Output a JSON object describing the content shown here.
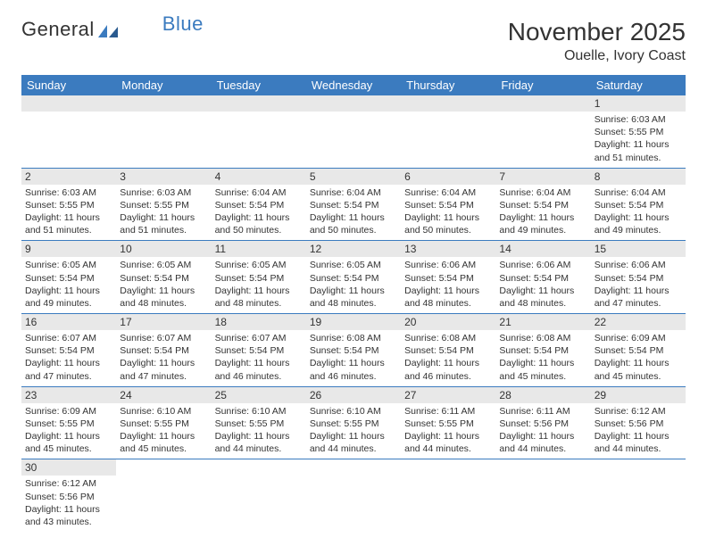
{
  "logo": {
    "text1": "General",
    "text2": "Blue"
  },
  "title": "November 2025",
  "location": "Ouelle, Ivory Coast",
  "colors": {
    "header_bg": "#3b7bbf",
    "header_text": "#ffffff",
    "daynum_bg": "#e8e8e8",
    "border": "#3b7bbf",
    "text": "#333333",
    "background": "#ffffff"
  },
  "typography": {
    "title_fontsize": 28,
    "location_fontsize": 16,
    "day_header_fontsize": 13,
    "daynum_fontsize": 12,
    "body_fontsize": 10.5
  },
  "days_of_week": [
    "Sunday",
    "Monday",
    "Tuesday",
    "Wednesday",
    "Thursday",
    "Friday",
    "Saturday"
  ],
  "weeks": [
    [
      null,
      null,
      null,
      null,
      null,
      null,
      {
        "n": "1",
        "sunrise": "6:03 AM",
        "sunset": "5:55 PM",
        "daylight": "11 hours and 51 minutes."
      }
    ],
    [
      {
        "n": "2",
        "sunrise": "6:03 AM",
        "sunset": "5:55 PM",
        "daylight": "11 hours and 51 minutes."
      },
      {
        "n": "3",
        "sunrise": "6:03 AM",
        "sunset": "5:55 PM",
        "daylight": "11 hours and 51 minutes."
      },
      {
        "n": "4",
        "sunrise": "6:04 AM",
        "sunset": "5:54 PM",
        "daylight": "11 hours and 50 minutes."
      },
      {
        "n": "5",
        "sunrise": "6:04 AM",
        "sunset": "5:54 PM",
        "daylight": "11 hours and 50 minutes."
      },
      {
        "n": "6",
        "sunrise": "6:04 AM",
        "sunset": "5:54 PM",
        "daylight": "11 hours and 50 minutes."
      },
      {
        "n": "7",
        "sunrise": "6:04 AM",
        "sunset": "5:54 PM",
        "daylight": "11 hours and 49 minutes."
      },
      {
        "n": "8",
        "sunrise": "6:04 AM",
        "sunset": "5:54 PM",
        "daylight": "11 hours and 49 minutes."
      }
    ],
    [
      {
        "n": "9",
        "sunrise": "6:05 AM",
        "sunset": "5:54 PM",
        "daylight": "11 hours and 49 minutes."
      },
      {
        "n": "10",
        "sunrise": "6:05 AM",
        "sunset": "5:54 PM",
        "daylight": "11 hours and 48 minutes."
      },
      {
        "n": "11",
        "sunrise": "6:05 AM",
        "sunset": "5:54 PM",
        "daylight": "11 hours and 48 minutes."
      },
      {
        "n": "12",
        "sunrise": "6:05 AM",
        "sunset": "5:54 PM",
        "daylight": "11 hours and 48 minutes."
      },
      {
        "n": "13",
        "sunrise": "6:06 AM",
        "sunset": "5:54 PM",
        "daylight": "11 hours and 48 minutes."
      },
      {
        "n": "14",
        "sunrise": "6:06 AM",
        "sunset": "5:54 PM",
        "daylight": "11 hours and 48 minutes."
      },
      {
        "n": "15",
        "sunrise": "6:06 AM",
        "sunset": "5:54 PM",
        "daylight": "11 hours and 47 minutes."
      }
    ],
    [
      {
        "n": "16",
        "sunrise": "6:07 AM",
        "sunset": "5:54 PM",
        "daylight": "11 hours and 47 minutes."
      },
      {
        "n": "17",
        "sunrise": "6:07 AM",
        "sunset": "5:54 PM",
        "daylight": "11 hours and 47 minutes."
      },
      {
        "n": "18",
        "sunrise": "6:07 AM",
        "sunset": "5:54 PM",
        "daylight": "11 hours and 46 minutes."
      },
      {
        "n": "19",
        "sunrise": "6:08 AM",
        "sunset": "5:54 PM",
        "daylight": "11 hours and 46 minutes."
      },
      {
        "n": "20",
        "sunrise": "6:08 AM",
        "sunset": "5:54 PM",
        "daylight": "11 hours and 46 minutes."
      },
      {
        "n": "21",
        "sunrise": "6:08 AM",
        "sunset": "5:54 PM",
        "daylight": "11 hours and 45 minutes."
      },
      {
        "n": "22",
        "sunrise": "6:09 AM",
        "sunset": "5:54 PM",
        "daylight": "11 hours and 45 minutes."
      }
    ],
    [
      {
        "n": "23",
        "sunrise": "6:09 AM",
        "sunset": "5:55 PM",
        "daylight": "11 hours and 45 minutes."
      },
      {
        "n": "24",
        "sunrise": "6:10 AM",
        "sunset": "5:55 PM",
        "daylight": "11 hours and 45 minutes."
      },
      {
        "n": "25",
        "sunrise": "6:10 AM",
        "sunset": "5:55 PM",
        "daylight": "11 hours and 44 minutes."
      },
      {
        "n": "26",
        "sunrise": "6:10 AM",
        "sunset": "5:55 PM",
        "daylight": "11 hours and 44 minutes."
      },
      {
        "n": "27",
        "sunrise": "6:11 AM",
        "sunset": "5:55 PM",
        "daylight": "11 hours and 44 minutes."
      },
      {
        "n": "28",
        "sunrise": "6:11 AM",
        "sunset": "5:56 PM",
        "daylight": "11 hours and 44 minutes."
      },
      {
        "n": "29",
        "sunrise": "6:12 AM",
        "sunset": "5:56 PM",
        "daylight": "11 hours and 44 minutes."
      }
    ],
    [
      {
        "n": "30",
        "sunrise": "6:12 AM",
        "sunset": "5:56 PM",
        "daylight": "11 hours and 43 minutes."
      },
      null,
      null,
      null,
      null,
      null,
      null
    ]
  ],
  "labels": {
    "sunrise": "Sunrise: ",
    "sunset": "Sunset: ",
    "daylight": "Daylight: "
  }
}
